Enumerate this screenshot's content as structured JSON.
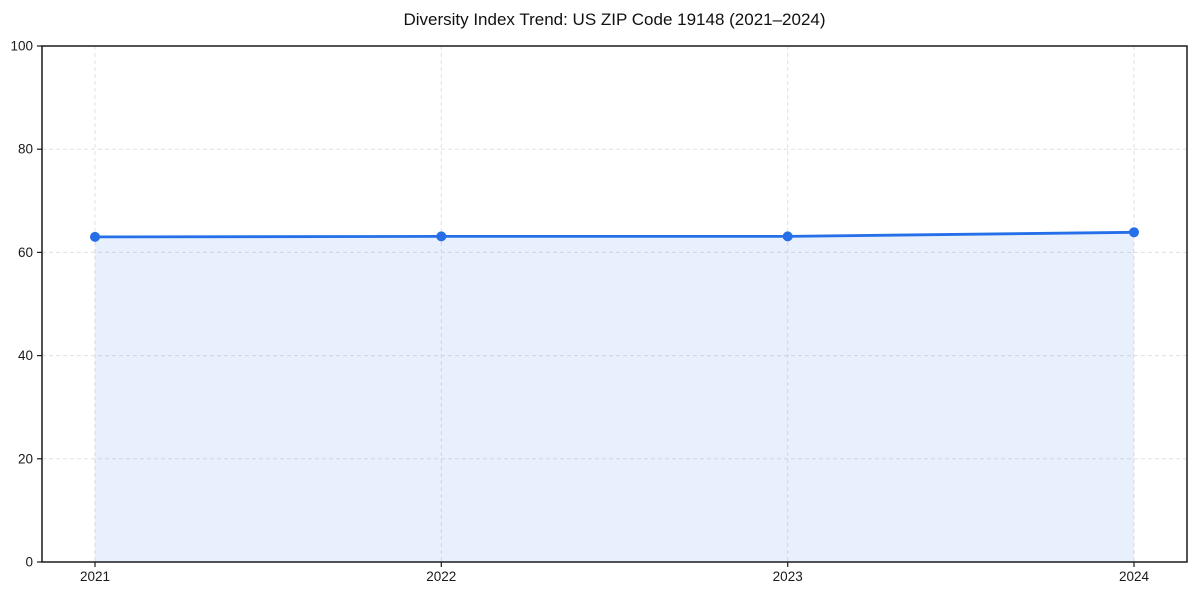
{
  "chart_data": {
    "type": "area",
    "title": "Diversity Index Trend: US ZIP Code 19148 (2021–2024)",
    "x": [
      2021,
      2022,
      2023,
      2024
    ],
    "series": [
      {
        "name": "Diversity Index",
        "values": [
          63.0,
          63.1,
          63.1,
          63.9
        ]
      }
    ],
    "xlabel": "",
    "ylabel": "",
    "xlim": [
      2021,
      2024
    ],
    "ylim": [
      0,
      100
    ],
    "yticks": [
      0,
      20,
      40,
      60,
      80,
      100
    ],
    "grid": "dashed",
    "legend": "none",
    "marker": "circle",
    "colors": {
      "line": "#2570e8",
      "marker": "#2570e8",
      "fill": "#2570e8",
      "fill_opacity": 0.1,
      "grid": "#e0e0e0",
      "axis": "#1a1a1a",
      "tick_label": "#1a1a1a"
    }
  }
}
